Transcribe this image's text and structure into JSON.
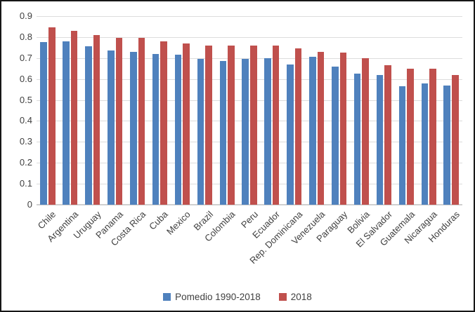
{
  "chart_data": {
    "type": "bar",
    "title": "",
    "categories": [
      "Chile",
      "Argentina",
      "Uruguay",
      "Panama",
      "Costa Rica",
      "Cuba",
      "Mexico",
      "Brazil",
      "Colombia",
      "Peru",
      "Ecuador",
      "Rep. Dominicana",
      "Venezuela",
      "Paraguay",
      "Bolivia",
      "El Salvador",
      "Guatemala",
      "Nicaragua",
      "Honduras"
    ],
    "series": [
      {
        "name": "Pomedio 1990-2018",
        "color": "#4F81BD",
        "values": [
          0.775,
          0.78,
          0.755,
          0.735,
          0.73,
          0.72,
          0.715,
          0.695,
          0.685,
          0.695,
          0.7,
          0.67,
          0.705,
          0.66,
          0.625,
          0.62,
          0.565,
          0.58,
          0.57
        ]
      },
      {
        "name": "2018",
        "color": "#C0504D",
        "values": [
          0.845,
          0.83,
          0.81,
          0.795,
          0.795,
          0.78,
          0.77,
          0.76,
          0.76,
          0.76,
          0.76,
          0.745,
          0.73,
          0.725,
          0.7,
          0.665,
          0.65,
          0.65,
          0.62
        ]
      }
    ],
    "ylim": [
      0,
      0.9
    ],
    "yticks": [
      {
        "v": 0.9,
        "label": "0.9"
      },
      {
        "v": 0.8,
        "label": "0.8"
      },
      {
        "v": 0.7,
        "label": "0.7"
      },
      {
        "v": 0.6,
        "label": "0.6"
      },
      {
        "v": 0.5,
        "label": "0.5"
      },
      {
        "v": 0.4,
        "label": "0.4"
      },
      {
        "v": 0.3,
        "label": "0.3"
      },
      {
        "v": 0.2,
        "label": "0.2"
      },
      {
        "v": 0.1,
        "label": "0.1"
      },
      {
        "v": 0.0,
        "label": "0"
      }
    ],
    "grid": "horizontal",
    "legend_position": "bottom",
    "xlabel_rotation_deg": -45,
    "colors": {
      "gridline": "#DCDCDC",
      "axis_line": "#D0D0D0",
      "text": "#404040",
      "background": "#FFFFFF",
      "frame_border": "#161616"
    }
  }
}
